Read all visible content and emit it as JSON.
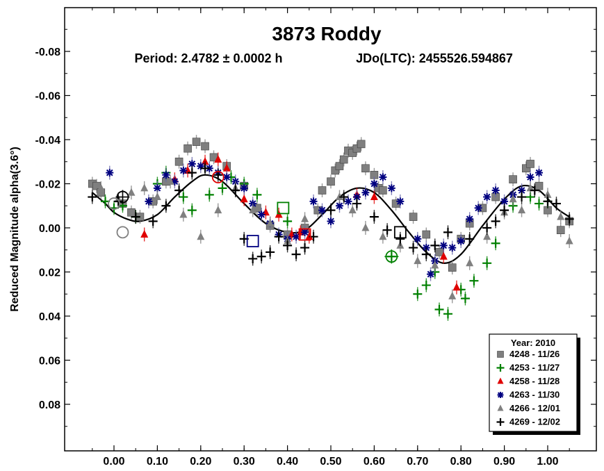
{
  "chart_data": {
    "type": "scatter",
    "title": "3873 Roddy",
    "subtitle_period": "Period: 2.4782 ± 0.0002 h",
    "subtitle_epoch": "JDo(LTC): 2455526.594867",
    "ylabel": "Reduced Magnitude alpha(3.6°)",
    "xlim": [
      -0.1,
      1.11
    ],
    "ylim": [
      0.1,
      -0.1
    ],
    "y_inverted": true,
    "x_ticks": [
      "0.00",
      "0.10",
      "0.20",
      "0.30",
      "0.40",
      "0.50",
      "0.60",
      "0.70",
      "0.80",
      "0.90",
      "1.00"
    ],
    "x_tick_values": [
      0.0,
      0.1,
      0.2,
      0.3,
      0.4,
      0.5,
      0.6,
      0.7,
      0.8,
      0.9,
      1.0
    ],
    "y_ticks": [
      "-0.08",
      "-0.06",
      "-0.04",
      "-0.02",
      "0.00",
      "0.02",
      "0.04",
      "0.06",
      "0.08"
    ],
    "y_tick_values": [
      -0.08,
      -0.06,
      -0.04,
      -0.02,
      0.0,
      0.02,
      0.04,
      0.06,
      0.08
    ],
    "grid": false,
    "legend": {
      "placement": "bottom-right",
      "title": "Year: 2010",
      "entries": [
        {
          "label": "4248 - 11/26",
          "marker": "square",
          "color": "#7f7f7f"
        },
        {
          "label": "4253 - 11/27",
          "marker": "plus",
          "color": "#008000"
        },
        {
          "label": "4258 - 11/28",
          "marker": "triangle",
          "color": "#e00000"
        },
        {
          "label": "4263 - 11/30",
          "marker": "asterisk",
          "color": "#000080"
        },
        {
          "label": "4266 - 12/01",
          "marker": "triangle",
          "color": "#808080"
        },
        {
          "label": "4269 - 12/02",
          "marker": "plus",
          "color": "#000000"
        }
      ]
    },
    "fit_curve": {
      "color": "#000000",
      "x": [
        -0.05,
        -0.02,
        0.0,
        0.03,
        0.06,
        0.1,
        0.14,
        0.18,
        0.21,
        0.25,
        0.3,
        0.35,
        0.4,
        0.44,
        0.48,
        0.52,
        0.56,
        0.6,
        0.64,
        0.68,
        0.72,
        0.76,
        0.8,
        0.85,
        0.9,
        0.94,
        0.98,
        1.02,
        1.05
      ],
      "y": [
        -0.016,
        -0.011,
        -0.007,
        -0.004,
        -0.003,
        -0.006,
        -0.014,
        -0.021,
        -0.024,
        -0.021,
        -0.011,
        -0.002,
        0.002,
        0.001,
        -0.006,
        -0.014,
        -0.018,
        -0.016,
        -0.008,
        0.002,
        0.011,
        0.016,
        0.012,
        -0.001,
        -0.013,
        -0.019,
        -0.017,
        -0.009,
        -0.005
      ]
    },
    "series": [
      {
        "name": "4248 - 11/26",
        "marker": "square",
        "color": "#7f7f7f",
        "errorbar": true,
        "x": [
          -0.05,
          -0.04,
          -0.03,
          0.02,
          0.04,
          0.06,
          0.09,
          0.12,
          0.15,
          0.17,
          0.19,
          0.21,
          0.23,
          0.26,
          0.3,
          0.33,
          0.36,
          0.4,
          0.44,
          0.47,
          0.48,
          0.5,
          0.51,
          0.52,
          0.53,
          0.54,
          0.55,
          0.56,
          0.57,
          0.58,
          0.6,
          0.61,
          0.62,
          0.65,
          0.69,
          0.72,
          0.75,
          0.78,
          0.8,
          0.82,
          0.85,
          0.88,
          0.92,
          0.95,
          0.96,
          0.98,
          1.0,
          1.03,
          1.05
        ],
        "y": [
          -0.02,
          -0.019,
          -0.016,
          -0.011,
          -0.007,
          -0.005,
          -0.012,
          -0.021,
          -0.03,
          -0.036,
          -0.039,
          -0.037,
          -0.032,
          -0.028,
          -0.019,
          -0.009,
          -0.001,
          0.003,
          0.0,
          -0.008,
          -0.017,
          -0.021,
          -0.026,
          -0.028,
          -0.031,
          -0.035,
          -0.034,
          -0.036,
          -0.038,
          -0.027,
          -0.024,
          -0.018,
          -0.017,
          -0.011,
          -0.005,
          0.003,
          0.011,
          0.018,
          0.005,
          -0.002,
          -0.009,
          -0.014,
          -0.022,
          -0.027,
          -0.029,
          -0.019,
          -0.008,
          0.001,
          -0.003
        ]
      },
      {
        "name": "4253 - 11/27",
        "marker": "plus",
        "color": "#008000",
        "errorbar": true,
        "x": [
          -0.02,
          0.0,
          0.02,
          0.05,
          0.1,
          0.12,
          0.16,
          0.18,
          0.22,
          0.25,
          0.27,
          0.3,
          0.33,
          0.4,
          0.64,
          0.7,
          0.72,
          0.74,
          0.75,
          0.77,
          0.8,
          0.81,
          0.83,
          0.86,
          0.88,
          0.92,
          0.96,
          0.98,
          1.0
        ],
        "y": [
          -0.012,
          -0.009,
          -0.01,
          -0.005,
          -0.02,
          -0.025,
          -0.014,
          -0.008,
          -0.015,
          -0.018,
          -0.023,
          -0.02,
          -0.015,
          -0.003,
          0.013,
          0.03,
          0.026,
          0.02,
          0.037,
          0.039,
          0.028,
          0.032,
          0.024,
          0.016,
          0.007,
          -0.01,
          -0.014,
          -0.011,
          -0.012
        ]
      },
      {
        "name": "4258 - 11/28",
        "marker": "triangle",
        "color": "#e00000",
        "errorbar": true,
        "x": [
          0.07,
          0.14,
          0.17,
          0.21,
          0.24,
          0.26,
          0.3,
          0.35,
          0.38,
          0.41,
          0.43,
          0.45,
          0.56,
          0.6,
          0.76,
          0.79
        ],
        "y": [
          0.003,
          -0.022,
          -0.026,
          -0.03,
          -0.031,
          -0.027,
          -0.013,
          -0.007,
          -0.006,
          0.003,
          0.002,
          0.004,
          -0.015,
          -0.014,
          0.013,
          0.027
        ]
      },
      {
        "name": "4263 - 11/30",
        "marker": "asterisk",
        "color": "#000080",
        "errorbar": true,
        "x": [
          -0.01,
          0.08,
          0.1,
          0.12,
          0.14,
          0.16,
          0.18,
          0.2,
          0.22,
          0.24,
          0.26,
          0.28,
          0.3,
          0.32,
          0.34,
          0.36,
          0.38,
          0.4,
          0.42,
          0.44,
          0.46,
          0.48,
          0.5,
          0.52,
          0.54,
          0.56,
          0.58,
          0.6,
          0.62,
          0.64,
          0.66,
          0.7,
          0.72,
          0.73,
          0.74,
          0.76,
          0.78,
          0.8,
          0.82,
          0.84,
          0.86,
          0.88,
          0.9,
          0.92,
          0.94,
          0.96,
          0.98
        ],
        "y": [
          -0.025,
          -0.012,
          -0.018,
          -0.024,
          -0.021,
          -0.026,
          -0.029,
          -0.028,
          -0.027,
          -0.025,
          -0.023,
          -0.021,
          -0.018,
          -0.011,
          -0.006,
          -0.002,
          0.003,
          0.005,
          0.004,
          0.002,
          -0.012,
          -0.008,
          -0.003,
          -0.01,
          -0.012,
          -0.014,
          -0.016,
          -0.02,
          -0.023,
          -0.018,
          -0.012,
          0.005,
          0.009,
          0.021,
          0.015,
          0.008,
          0.009,
          0.006,
          -0.004,
          -0.009,
          -0.014,
          -0.017,
          -0.012,
          -0.015,
          -0.017,
          -0.023,
          -0.025
        ]
      },
      {
        "name": "4266 - 12/01",
        "marker": "triangle",
        "color": "#808080",
        "errorbar": true,
        "x": [
          -0.03,
          0.01,
          0.04,
          0.07,
          0.1,
          0.13,
          0.16,
          0.2,
          0.24,
          0.28,
          0.32,
          0.36,
          0.4,
          0.44,
          0.52,
          0.55,
          0.58,
          0.62,
          0.66,
          0.7,
          0.74,
          0.78,
          0.82,
          0.86,
          0.9,
          0.92,
          0.94,
          0.96,
          1.0,
          1.03,
          1.05
        ],
        "y": [
          -0.018,
          -0.013,
          -0.016,
          -0.018,
          -0.014,
          -0.021,
          -0.006,
          0.004,
          -0.008,
          -0.018,
          -0.008,
          -0.002,
          0.006,
          -0.004,
          -0.014,
          -0.008,
          0.0,
          0.004,
          0.008,
          0.015,
          0.017,
          0.031,
          0.016,
          0.004,
          -0.007,
          -0.013,
          -0.008,
          -0.018,
          -0.015,
          -0.005,
          0.006
        ]
      },
      {
        "name": "4269 - 12/02",
        "marker": "plus",
        "color": "#000000",
        "errorbar": true,
        "x": [
          -0.05,
          0.01,
          0.05,
          0.09,
          0.12,
          0.15,
          0.18,
          0.21,
          0.24,
          0.28,
          0.3,
          0.32,
          0.34,
          0.36,
          0.38,
          0.4,
          0.42,
          0.44,
          0.46,
          0.5,
          0.53,
          0.56,
          0.6,
          0.63,
          0.66,
          0.69,
          0.72,
          0.74,
          0.77,
          0.82,
          0.86,
          0.88,
          0.9,
          0.94,
          0.97,
          1.0,
          1.02,
          1.05
        ],
        "y": [
          -0.014,
          -0.012,
          -0.005,
          -0.003,
          -0.01,
          -0.017,
          -0.025,
          -0.027,
          -0.024,
          -0.017,
          0.005,
          0.014,
          0.013,
          0.011,
          0.004,
          0.008,
          0.012,
          0.009,
          0.004,
          -0.008,
          -0.014,
          -0.011,
          -0.005,
          0.001,
          0.005,
          0.009,
          0.012,
          0.008,
          0.002,
          0.005,
          0.0,
          -0.003,
          -0.008,
          -0.014,
          -0.017,
          -0.012,
          -0.011,
          -0.004
        ]
      }
    ],
    "highlighted_points": [
      {
        "x": 0.02,
        "y": -0.014,
        "marker": "circle-plus",
        "color": "#000000"
      },
      {
        "x": 0.0,
        "y": -0.011,
        "marker": "circle",
        "color": "#7f7f7f"
      },
      {
        "x": 0.02,
        "y": 0.002,
        "marker": "circle",
        "color": "#7f7f7f"
      },
      {
        "x": 0.24,
        "y": -0.023,
        "marker": "circle",
        "color": "#e00000"
      },
      {
        "x": 0.32,
        "y": 0.006,
        "marker": "square",
        "color": "#000080"
      },
      {
        "x": 0.39,
        "y": -0.009,
        "marker": "square",
        "color": "#008000"
      },
      {
        "x": 0.44,
        "y": 0.003,
        "marker": "square",
        "color": "#e00000"
      },
      {
        "x": 0.64,
        "y": 0.013,
        "marker": "circle-plus",
        "color": "#008000"
      },
      {
        "x": 0.66,
        "y": 0.002,
        "marker": "square",
        "color": "#000000"
      }
    ]
  }
}
